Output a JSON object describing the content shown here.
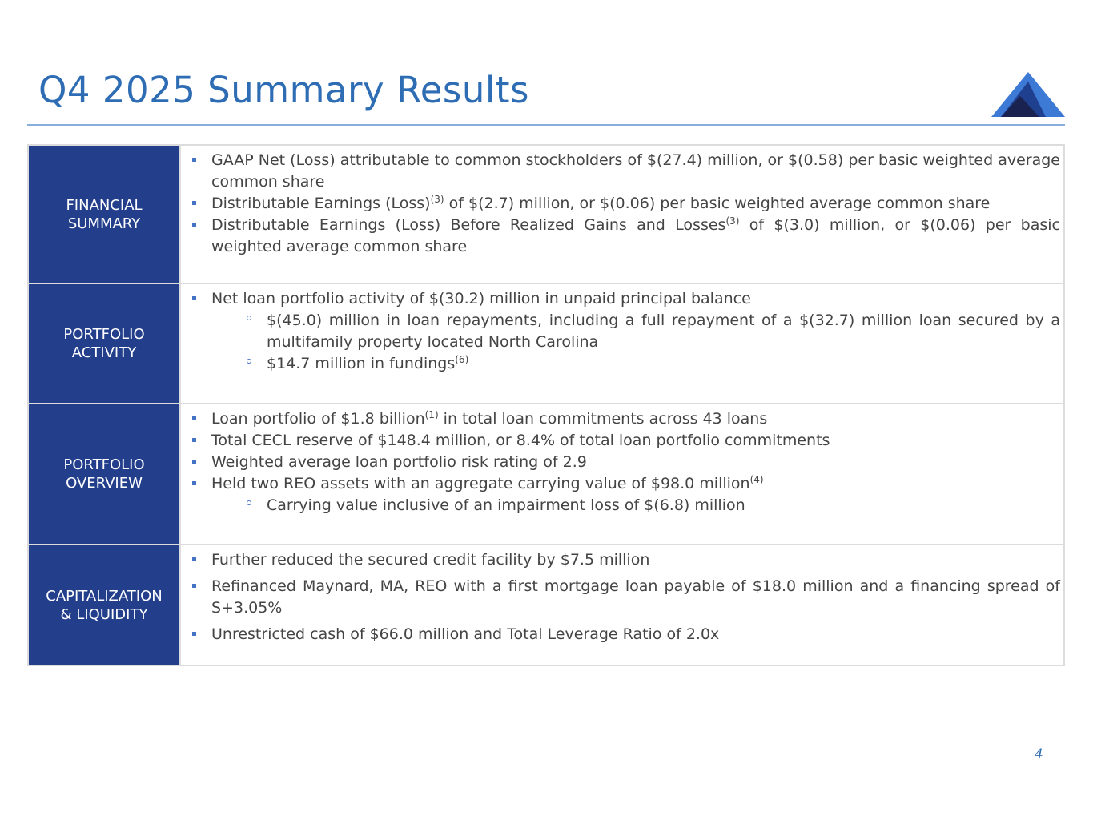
{
  "header": {
    "title": "Q4 2025 Summary Results"
  },
  "sections": [
    {
      "label": "FINANCIAL SUMMARY",
      "bullets": [
        {
          "level": 1,
          "text": "GAAP Net (Loss) attributable to common stockholders of $(27.4) million, or $(0.58) per basic weighted average common share"
        },
        {
          "level": 1,
          "text": "Distributable Earnings (Loss)",
          "note": "(3)",
          "rest": " of $(2.7) million, or $(0.06) per basic weighted average common share"
        },
        {
          "level": 1,
          "text": "Distributable Earnings (Loss) Before Realized Gains and Losses",
          "note": "(3)",
          "rest": " of $(3.0) million, or $(0.06) per basic weighted average common share"
        }
      ]
    },
    {
      "label": "PORTFOLIO ACTIVITY",
      "bullets": [
        {
          "level": 1,
          "text": "Net loan portfolio activity of $(30.2) million in unpaid principal balance"
        },
        {
          "level": 2,
          "text": "$(45.0) million in loan repayments, including a full repayment of a $(32.7) million loan secured by a multifamily property located North Carolina"
        },
        {
          "level": 2,
          "text": "$14.7 million in fundings",
          "note": "(6)"
        }
      ]
    },
    {
      "label": "PORTFOLIO OVERVIEW",
      "bullets": [
        {
          "level": 1,
          "text": "Loan portfolio of $1.8 billion",
          "note": "(1)",
          "rest": " in total loan commitments across 43 loans"
        },
        {
          "level": 1,
          "text": "Total CECL reserve of $148.4 million, or 8.4% of total loan portfolio commitments"
        },
        {
          "level": 1,
          "text": "Weighted average loan portfolio risk rating of 2.9"
        },
        {
          "level": 1,
          "text": "Held two REO assets with an aggregate carrying value of $98.0 million",
          "note": "(4)"
        },
        {
          "level": 2,
          "text": "Carrying value inclusive of an impairment loss of $(6.8) million"
        }
      ]
    },
    {
      "label": "CAPITALIZATION & LIQUIDITY",
      "bullets": [
        {
          "level": 1,
          "text": "Further reduced the secured credit facility by $7.5 million"
        },
        {
          "level": 1,
          "text": "Refinanced Maynard, MA, REO with a first mortgage loan payable of $18.0 million and a financing spread of S+3.05%"
        },
        {
          "level": 1,
          "text": "Unrestricted cash of $66.0 million and Total Leverage Ratio of 2.0x"
        }
      ]
    }
  ],
  "footer": {
    "page_number": "4"
  }
}
